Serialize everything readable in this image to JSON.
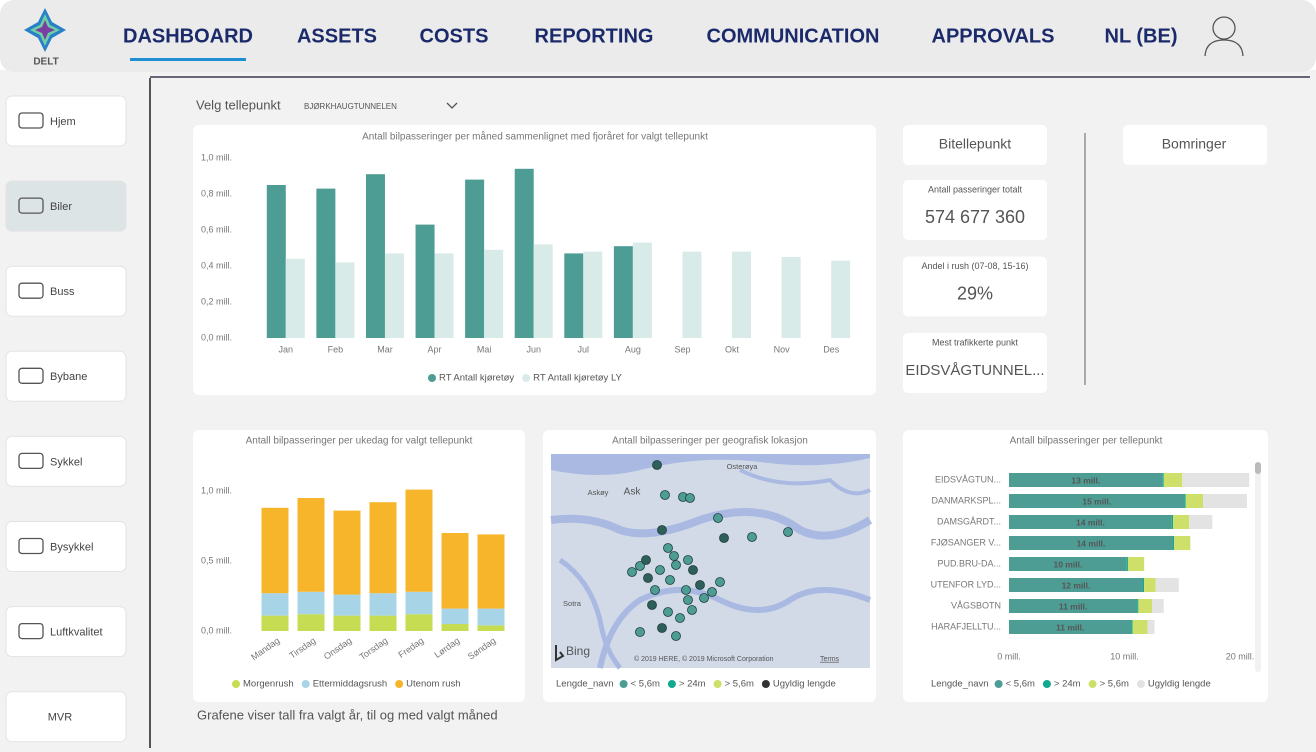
{
  "logo": "DELT",
  "nav": [
    "DASHBOARD",
    "ASSETS",
    "COSTS",
    "REPORTING",
    "COMMUNICATION",
    "APPROVALS",
    "NL (BE)"
  ],
  "sidebar": [
    "Hjem",
    "Biler",
    "Buss",
    "Bybane",
    "Sykkel",
    "Bysykkel",
    "Luftkvalitet",
    "MVR"
  ],
  "filter": {
    "label": "Velg tellepunkt",
    "value": "BJØRKHAUGTUNNELEN"
  },
  "buttons": [
    "Bitellepunkt",
    "Bomringer"
  ],
  "cards": [
    {
      "label": "Antall passeringer totalt",
      "value": "574 677 360"
    },
    {
      "label": "Andel i rush (07-08, 15-16)",
      "value": "29%"
    },
    {
      "label": "Mest trafikkerte punkt",
      "value": "EIDSVÅGTUNNEL..."
    }
  ],
  "footnote": "Grafene viser tall fra valgt år, til og med valgt måned",
  "map": {
    "title": "Antall bilpasseringer per geografisk lokasjon",
    "places": [
      "Osterøya",
      "Askøy",
      "Ask",
      "Sotra"
    ],
    "provider": "Bing",
    "copyright": "© 2019 HERE, © 2019 Microsoft Corporation",
    "terms": "Terms",
    "legend_title": "Lengde_navn",
    "legend": [
      {
        "name": "< 5,6m",
        "color": "#4d9d95"
      },
      {
        "name": "> 24m",
        "color": "#12a98f"
      },
      {
        "name": "> 5,6m",
        "color": "#cfe06a"
      },
      {
        "name": "Ugyldig lengde",
        "color": "#333333"
      }
    ]
  },
  "chart_data": [
    {
      "type": "bar",
      "title": "Antall bilpasseringer per måned sammenlignet med fjoråret for valgt tellepunkt",
      "categories": [
        "Jan",
        "Feb",
        "Mar",
        "Apr",
        "Mai",
        "Jun",
        "Jul",
        "Aug",
        "Sep",
        "Okt",
        "Nov",
        "Des"
      ],
      "series": [
        {
          "name": "RT Antall kjøretøy",
          "color": "#4d9d95",
          "values": [
            0.85,
            0.83,
            0.91,
            0.63,
            0.88,
            0.94,
            0.47,
            0.51,
            null,
            null,
            null,
            null
          ]
        },
        {
          "name": "RT Antall kjøretøy LY",
          "color": "#d8ebe8",
          "values": [
            0.44,
            0.42,
            0.47,
            0.47,
            0.49,
            0.52,
            0.48,
            0.53,
            0.48,
            0.48,
            0.45,
            0.43
          ]
        }
      ],
      "ylim": [
        0,
        1.0
      ],
      "yticks": [
        {
          "value": 0,
          "label": "0,0 mill."
        },
        {
          "value": 0.2,
          "label": "0,2 mill."
        },
        {
          "value": 0.4,
          "label": "0,4 mill."
        },
        {
          "value": 0.6,
          "label": "0,6 mill."
        },
        {
          "value": 0.8,
          "label": "0,8 mill."
        },
        {
          "value": 1.0,
          "label": "1,0 mill."
        }
      ],
      "grid": false
    },
    {
      "type": "bar",
      "stacked": true,
      "title": "Antall bilpasseringer per ukedag for valgt tellepunkt",
      "categories": [
        "Mandag",
        "Tirsdag",
        "Onsdag",
        "Torsdag",
        "Fredag",
        "Lørdag",
        "Søndag"
      ],
      "series": [
        {
          "name": "Morgenrush",
          "color": "#c6dc52",
          "values": [
            0.11,
            0.12,
            0.11,
            0.11,
            0.12,
            0.05,
            0.04
          ]
        },
        {
          "name": "Ettermiddagsrush",
          "color": "#a8d4e8",
          "values": [
            0.16,
            0.16,
            0.15,
            0.16,
            0.16,
            0.11,
            0.12
          ]
        },
        {
          "name": "Utenom rush",
          "color": "#f7b52c",
          "values": [
            0.61,
            0.67,
            0.6,
            0.65,
            0.73,
            0.54,
            0.53
          ]
        }
      ],
      "ylim": [
        0,
        1.2
      ],
      "yticks": [
        {
          "value": 0,
          "label": "0,0 mill."
        },
        {
          "value": 0.5,
          "label": "0,5 mill."
        },
        {
          "value": 1.0,
          "label": "1,0 mill."
        }
      ],
      "grid": false
    },
    {
      "type": "bar",
      "stacked": true,
      "horizontal": true,
      "title": "Antall bilpasseringer per tellepunkt",
      "legend_title": "Lengde_navn",
      "categories": [
        "EIDSVÅGTUN...",
        "DANMARKSPL...",
        "DAMSGÅRDT...",
        "FJØSANGER V...",
        "PUD.BRU-DA...",
        "UTENFOR LYD...",
        "VÅGSBOTN",
        "HARAFJELLTU..."
      ],
      "series": [
        {
          "name": "< 5,6m",
          "color": "#4d9d95",
          "values": [
            13.3,
            15.2,
            14.1,
            14.2,
            10.2,
            11.6,
            11.1,
            10.6
          ],
          "value_labels": [
            "13 mill.",
            "15 mill.",
            "14 mill.",
            "14 mill.",
            "10 mill.",
            "12 mill.",
            "11 mill.",
            "11 mill."
          ]
        },
        {
          "name": "> 24m",
          "color": "#12a98f",
          "values": [
            0.1,
            0.1,
            0.1,
            0.1,
            0.1,
            0.1,
            0.1,
            0.1
          ]
        },
        {
          "name": "> 5,6m",
          "color": "#cfe06a",
          "values": [
            1.6,
            1.5,
            1.4,
            1.4,
            1.4,
            1.0,
            1.2,
            1.3
          ]
        },
        {
          "name": "Ugyldig lengde",
          "color": "#e3e3e3",
          "values": [
            5.8,
            3.8,
            2.0,
            0,
            0,
            2.0,
            1.0,
            0.6
          ]
        }
      ],
      "xlim": [
        0,
        20
      ],
      "xticks": [
        {
          "value": 0,
          "label": "0 mill."
        },
        {
          "value": 10,
          "label": "10 mill."
        },
        {
          "value": 20,
          "label": "20 mill."
        }
      ],
      "grid": false
    }
  ]
}
